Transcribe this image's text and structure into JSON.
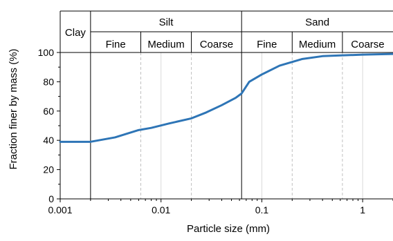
{
  "chart_data": {
    "type": "line",
    "xlabel": "Particle size (mm)",
    "ylabel": "Fraction finer by mass (%)",
    "x_scale": "log",
    "xlim": [
      0.001,
      2
    ],
    "ylim": [
      0,
      100
    ],
    "x_ticks": [
      {
        "value": 0.001,
        "label": "0.001"
      },
      {
        "value": 0.01,
        "label": "0.01"
      },
      {
        "value": 0.1,
        "label": "0.1"
      },
      {
        "value": 1,
        "label": "1"
      }
    ],
    "y_ticks": [
      {
        "value": 0,
        "label": "0"
      },
      {
        "value": 20,
        "label": "20"
      },
      {
        "value": 40,
        "label": "40"
      },
      {
        "value": 60,
        "label": "60"
      },
      {
        "value": 80,
        "label": "80"
      },
      {
        "value": 100,
        "label": "100"
      }
    ],
    "series": [
      {
        "color": "#2e75b6",
        "x": [
          0.001,
          0.002,
          0.0035,
          0.006,
          0.008,
          0.012,
          0.02,
          0.028,
          0.04,
          0.055,
          0.063,
          0.075,
          0.1,
          0.15,
          0.25,
          0.4,
          0.6,
          1.0,
          2.0
        ],
        "y": [
          39,
          39,
          42,
          47,
          48.5,
          51.5,
          55,
          59,
          64,
          69,
          72,
          80,
          85,
          91,
          95.5,
          97.5,
          98,
          98.5,
          99
        ]
      }
    ],
    "classification": {
      "top_bands": [
        {
          "label": "Clay",
          "from": 0.001,
          "to": 0.002
        },
        {
          "label": "Silt",
          "from": 0.002,
          "to": 0.063
        },
        {
          "label": "Sand",
          "from": 0.063,
          "to": 2
        }
      ],
      "sub_bands": [
        {
          "label": "Fine",
          "from": 0.002,
          "to": 0.0063
        },
        {
          "label": "Medium",
          "from": 0.0063,
          "to": 0.02
        },
        {
          "label": "Coarse",
          "from": 0.02,
          "to": 0.063
        },
        {
          "label": "Fine",
          "from": 0.063,
          "to": 0.2
        },
        {
          "label": "Medium",
          "from": 0.2,
          "to": 0.63
        },
        {
          "label": "Coarse",
          "from": 0.63,
          "to": 2
        }
      ],
      "solid_boundaries": [
        0.002,
        0.063
      ],
      "dashed_boundaries": [
        0.0063,
        0.02,
        0.2,
        0.63
      ]
    },
    "grid": "x major + dashed minor",
    "colors": {
      "line": "#2e75b6",
      "grid": "#d9d9d9",
      "dash": "#bfbfbf",
      "axis": "#000000"
    }
  }
}
